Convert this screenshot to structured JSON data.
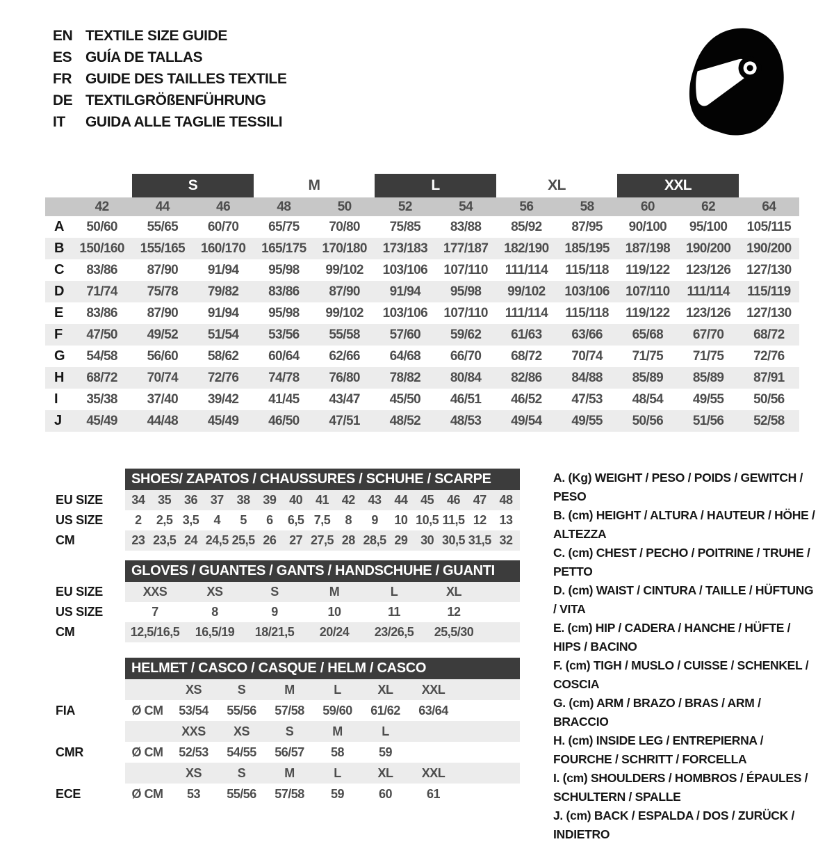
{
  "colors": {
    "band_dark": "#3c3c3c",
    "band_text": "#ffffff",
    "number_header_gray": "#c7c7c7",
    "row_stripe": "#ececec",
    "value_text": "#4d4d4d",
    "label_text": "#161616"
  },
  "header": {
    "languages": [
      {
        "code": "EN",
        "label": "TEXTILE SIZE GUIDE"
      },
      {
        "code": "ES",
        "label": "GUÍA DE TALLAS"
      },
      {
        "code": "FR",
        "label": "GUIDE DES TAILLES TEXTILE"
      },
      {
        "code": "DE",
        "label": "TEXTILGRÖßENFÜHRUNG"
      },
      {
        "code": "IT",
        "label": "GUIDA ALLE TAGLIE TESSILI"
      }
    ],
    "logo_icon": "full-face-helmet-icon"
  },
  "main_table": {
    "bands": [
      {
        "label": "",
        "cols": 2,
        "dark": false
      },
      {
        "label": "S",
        "cols": 2,
        "dark": true
      },
      {
        "label": "M",
        "cols": 2,
        "dark": false
      },
      {
        "label": "L",
        "cols": 2,
        "dark": true
      },
      {
        "label": "XL",
        "cols": 2,
        "dark": false
      },
      {
        "label": "XXL",
        "cols": 2,
        "dark": true
      },
      {
        "label": "",
        "cols": 1,
        "dark": false
      }
    ],
    "columns": [
      "42",
      "44",
      "46",
      "48",
      "50",
      "52",
      "54",
      "56",
      "58",
      "60",
      "62",
      "64"
    ],
    "rows": [
      {
        "letter": "A",
        "values": [
          "50/60",
          "55/65",
          "60/70",
          "65/75",
          "70/80",
          "75/85",
          "83/88",
          "85/92",
          "87/95",
          "90/100",
          "95/100",
          "105/115"
        ]
      },
      {
        "letter": "B",
        "values": [
          "150/160",
          "155/165",
          "160/170",
          "165/175",
          "170/180",
          "173/183",
          "177/187",
          "182/190",
          "185/195",
          "187/198",
          "190/200",
          "190/200"
        ]
      },
      {
        "letter": "C",
        "values": [
          "83/86",
          "87/90",
          "91/94",
          "95/98",
          "99/102",
          "103/106",
          "107/110",
          "111/114",
          "115/118",
          "119/122",
          "123/126",
          "127/130"
        ]
      },
      {
        "letter": "D",
        "values": [
          "71/74",
          "75/78",
          "79/82",
          "83/86",
          "87/90",
          "91/94",
          "95/98",
          "99/102",
          "103/106",
          "107/110",
          "111/114",
          "115/119"
        ]
      },
      {
        "letter": "E",
        "values": [
          "83/86",
          "87/90",
          "91/94",
          "95/98",
          "99/102",
          "103/106",
          "107/110",
          "111/114",
          "115/118",
          "119/122",
          "123/126",
          "127/130"
        ]
      },
      {
        "letter": "F",
        "values": [
          "47/50",
          "49/52",
          "51/54",
          "53/56",
          "55/58",
          "57/60",
          "59/62",
          "61/63",
          "63/66",
          "65/68",
          "67/70",
          "68/72"
        ]
      },
      {
        "letter": "G",
        "values": [
          "54/58",
          "56/60",
          "58/62",
          "60/64",
          "62/66",
          "64/68",
          "66/70",
          "68/72",
          "70/74",
          "71/75",
          "71/75",
          "72/76"
        ]
      },
      {
        "letter": "H",
        "values": [
          "68/72",
          "70/74",
          "72/76",
          "74/78",
          "76/80",
          "78/82",
          "80/84",
          "82/86",
          "84/88",
          "85/89",
          "85/89",
          "87/91"
        ]
      },
      {
        "letter": "I",
        "values": [
          "35/38",
          "37/40",
          "39/42",
          "41/45",
          "43/47",
          "45/50",
          "46/51",
          "46/52",
          "47/53",
          "48/54",
          "49/55",
          "50/56"
        ]
      },
      {
        "letter": "J",
        "values": [
          "45/49",
          "44/48",
          "45/49",
          "46/50",
          "47/51",
          "48/52",
          "48/53",
          "49/54",
          "49/55",
          "50/56",
          "51/56",
          "52/58"
        ]
      }
    ]
  },
  "shoes": {
    "title": "SHOES/ ZAPATOS / CHAUSSURES / SCHUHE / SCARPE",
    "rows": [
      {
        "label": "EU SIZE",
        "striped": true,
        "values": [
          "34",
          "35",
          "36",
          "37",
          "38",
          "39",
          "40",
          "41",
          "42",
          "43",
          "44",
          "45",
          "46",
          "47",
          "48"
        ]
      },
      {
        "label": "US SIZE",
        "striped": false,
        "values": [
          "2",
          "2,5",
          "3,5",
          "4",
          "5",
          "6",
          "6,5",
          "7,5",
          "8",
          "9",
          "10",
          "10,5",
          "11,5",
          "12",
          "13"
        ]
      },
      {
        "label": "CM",
        "striped": true,
        "values": [
          "23",
          "23,5",
          "24",
          "24,5",
          "25,5",
          "26",
          "27",
          "27,5",
          "28",
          "28,5",
          "29",
          "30",
          "30,5",
          "31,5",
          "32"
        ]
      }
    ]
  },
  "gloves": {
    "title": "GLOVES / GUANTES / GANTS / HANDSCHUHE / GUANTI",
    "rows": [
      {
        "label": "EU SIZE",
        "striped": true,
        "values": [
          "XXS",
          "XS",
          "S",
          "M",
          "L",
          "XL"
        ]
      },
      {
        "label": "US SIZE",
        "striped": false,
        "values": [
          "7",
          "8",
          "9",
          "10",
          "11",
          "12"
        ]
      },
      {
        "label": "CM",
        "striped": true,
        "values": [
          "12,5/16,5",
          "16,5/19",
          "18/21,5",
          "20/24",
          "23/26,5",
          "25,5/30"
        ]
      }
    ]
  },
  "helmet": {
    "title": "HELMET / CASCO / CASQUE / HELM / CASCO",
    "groups": [
      {
        "label": "FIA",
        "prefix": "Ø CM",
        "sizes": [
          "XS",
          "S",
          "M",
          "L",
          "XL",
          "XXL"
        ],
        "values": [
          "53/54",
          "55/56",
          "57/58",
          "59/60",
          "61/62",
          "63/64"
        ]
      },
      {
        "label": "CMR",
        "prefix": "Ø CM",
        "sizes": [
          "XXS",
          "XS",
          "S",
          "M",
          "L",
          ""
        ],
        "values": [
          "52/53",
          "54/55",
          "56/57",
          "58",
          "59",
          ""
        ]
      },
      {
        "label": "ECE",
        "prefix": "Ø CM",
        "sizes": [
          "XS",
          "S",
          "M",
          "L",
          "XL",
          "XXL"
        ],
        "values": [
          "53",
          "55/56",
          "57/58",
          "59",
          "60",
          "61"
        ]
      }
    ]
  },
  "legend": [
    "A. (Kg) WEIGHT / PESO / POIDS / GEWITCH / PESO",
    "B. (cm) HEIGHT / ALTURA / HAUTEUR / HÖHE / ALTEZZA",
    "C. (cm) CHEST / PECHO / POITRINE / TRUHE / PETTO",
    "D. (cm) WAIST / CINTURA / TAILLE / HÜFTUNG / VITA",
    "E. (cm) HIP / CADERA / HANCHE / HÜFTE / HIPS / BACINO",
    "F. (cm) TIGH / MUSLO / CUISSE / SCHENKEL / COSCIA",
    "G. (cm) ARM / BRAZO / BRAS / ARM / BRACCIO",
    "H. (cm) INSIDE LEG / ENTREPIERNA / FOURCHE / SCHRITT / FORCELLA",
    "I. (cm) SHOULDERS / HOMBROS / ÉPAULES / SCHULTERN / SPALLE",
    "J. (cm) BACK / ESPALDA / DOS / ZURÜCK / INDIETRO"
  ]
}
